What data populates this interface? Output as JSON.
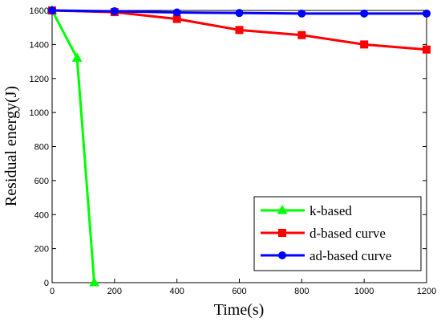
{
  "chart_data": {
    "type": "line",
    "xlabel": "Time(s)",
    "ylabel": "Residual energy(J)",
    "xlim": [
      0,
      1200
    ],
    "ylim": [
      0,
      1600
    ],
    "x_ticks": [
      0,
      200,
      400,
      600,
      800,
      1000,
      1200
    ],
    "y_ticks": [
      0,
      200,
      400,
      600,
      800,
      1000,
      1200,
      1400,
      1600
    ],
    "grid": false,
    "legend_position": "bottom-right",
    "series": [
      {
        "name": "k-based",
        "color": "#00ff00",
        "marker": "triangle",
        "x": [
          0,
          80,
          135
        ],
        "y": [
          1600,
          1320,
          0
        ]
      },
      {
        "name": "d-based curve",
        "color": "#ff0000",
        "marker": "square",
        "x": [
          0,
          200,
          400,
          600,
          800,
          1000,
          1200
        ],
        "y": [
          1600,
          1590,
          1550,
          1485,
          1455,
          1400,
          1370
        ]
      },
      {
        "name": "ad-based curve",
        "color": "#0000ff",
        "marker": "circle",
        "x": [
          0,
          200,
          400,
          600,
          800,
          1000,
          1200
        ],
        "y": [
          1600,
          1595,
          1588,
          1585,
          1582,
          1582,
          1582
        ]
      }
    ]
  }
}
